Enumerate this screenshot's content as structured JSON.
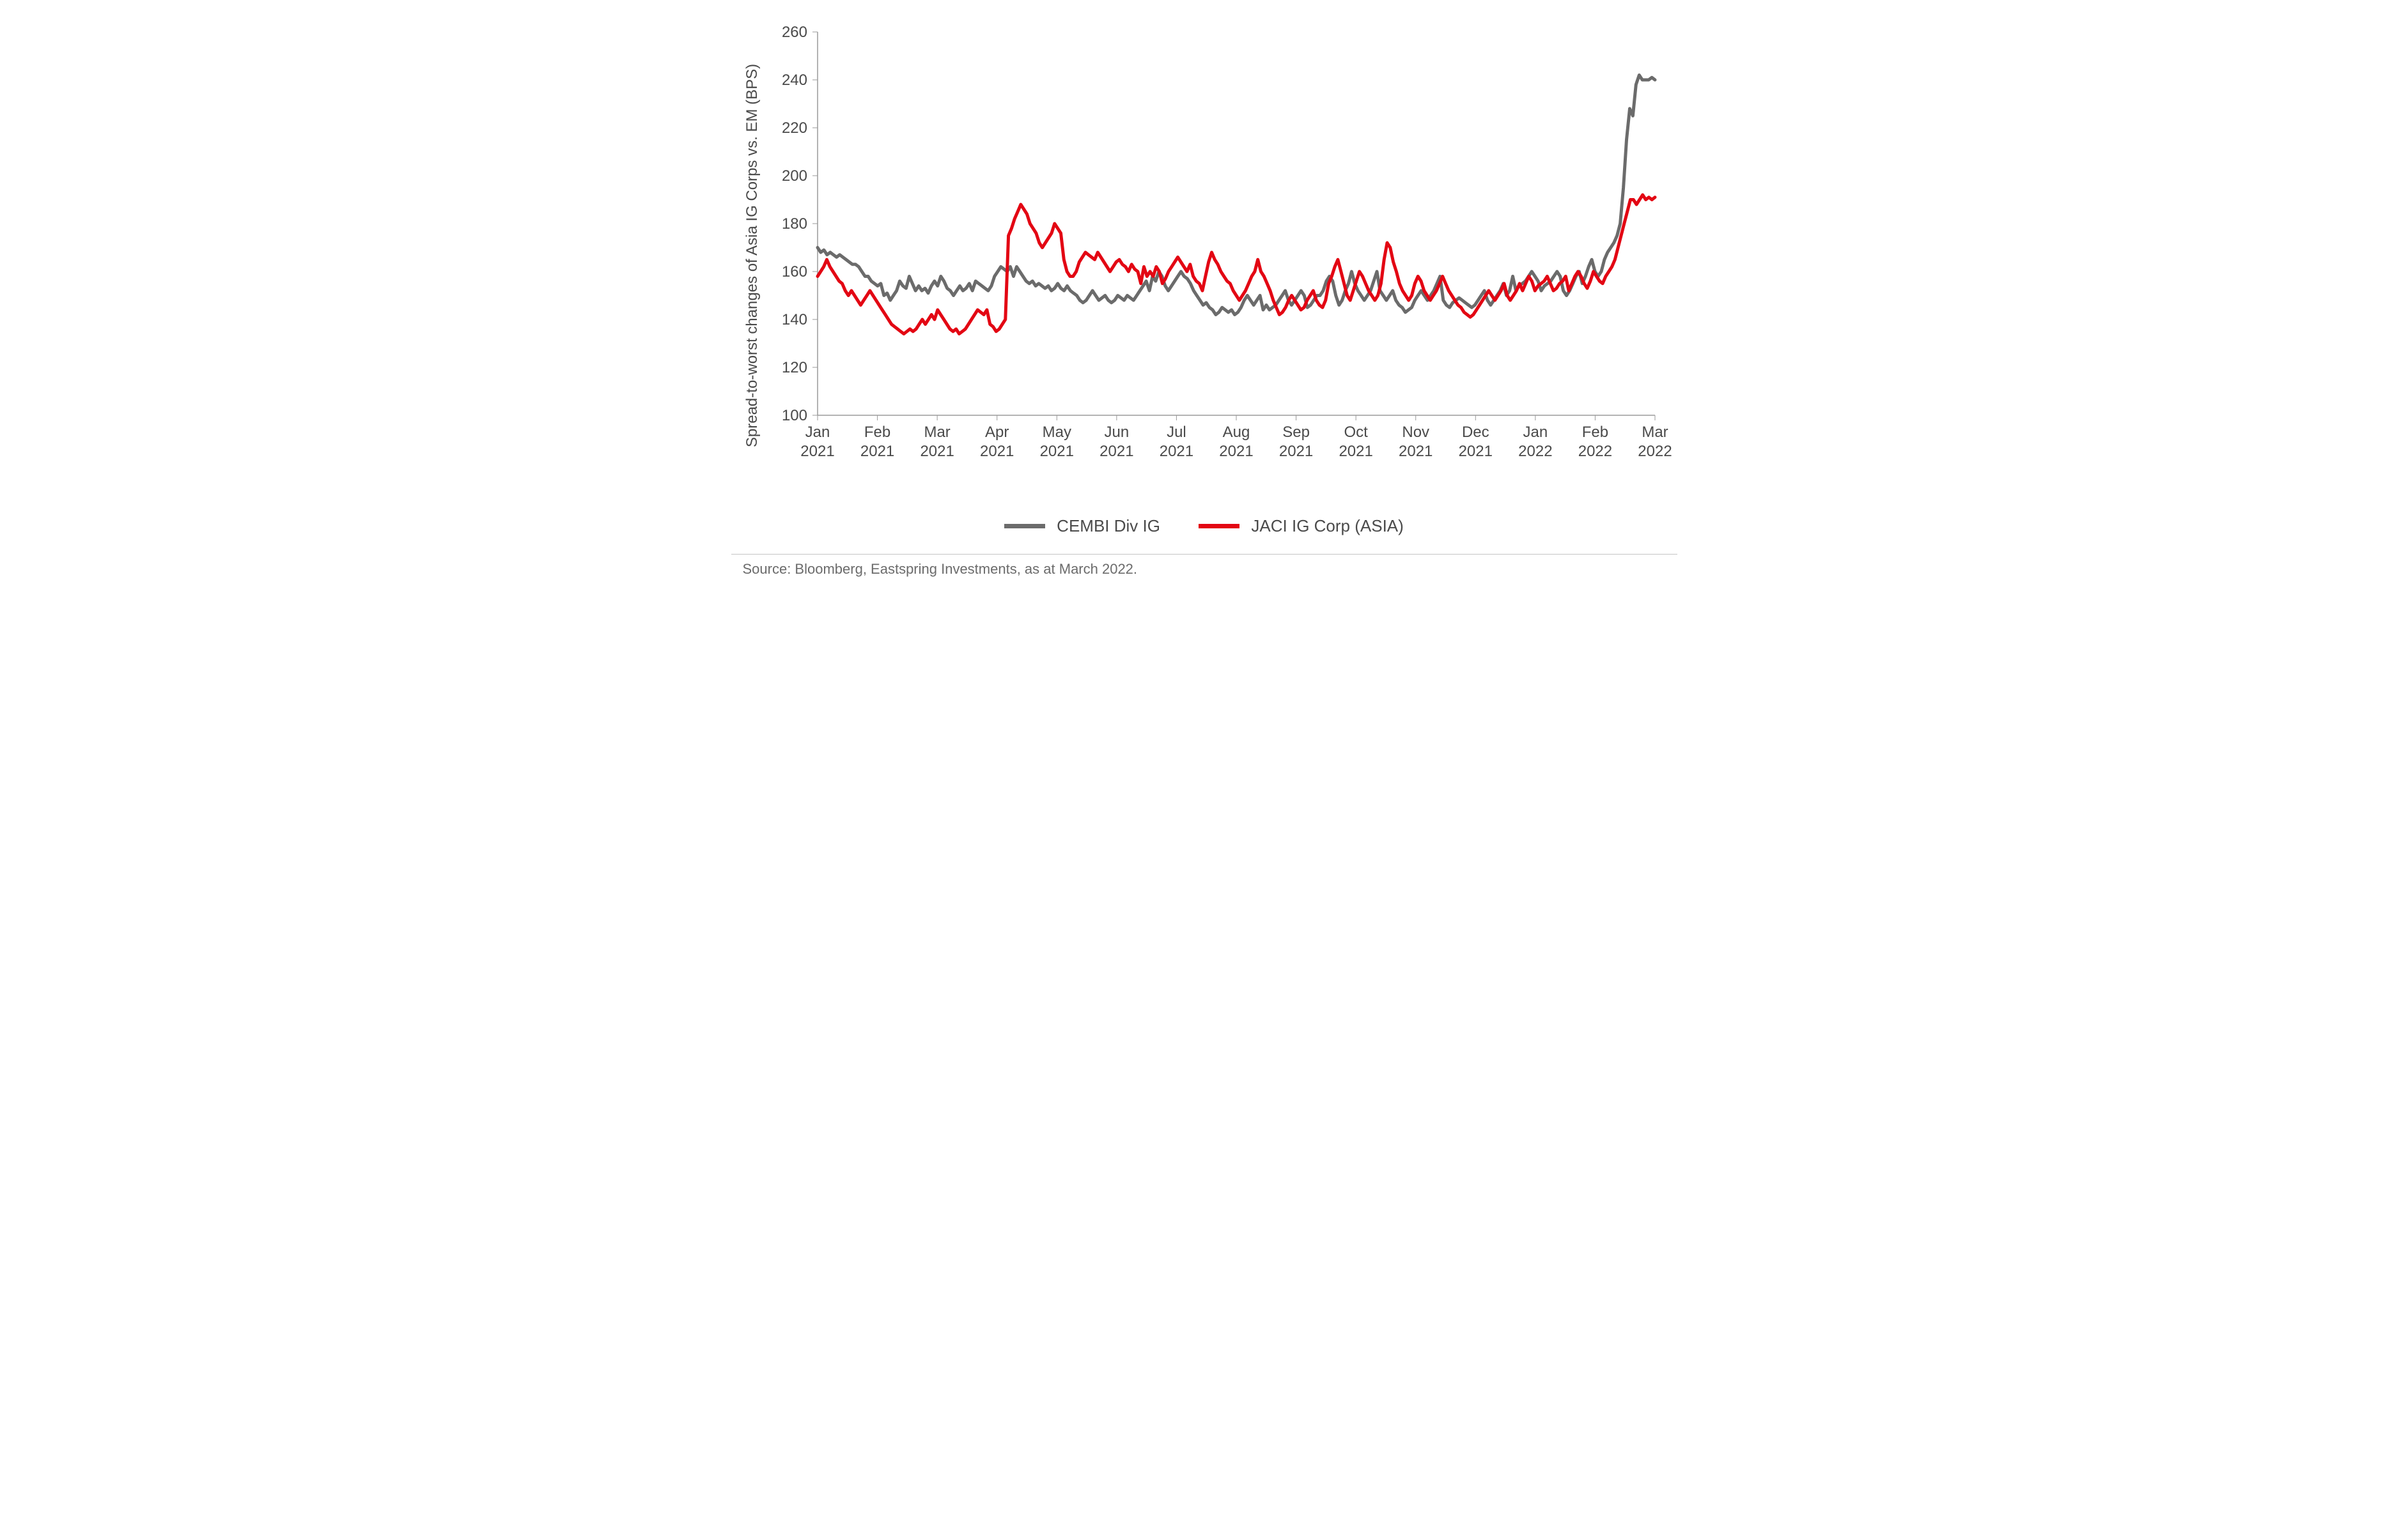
{
  "chart": {
    "type": "line",
    "background_color": "#ffffff",
    "axis_color": "#9a9a9a",
    "tick_color": "#9a9a9a",
    "text_color": "#4a4a4a",
    "source_text_color": "#6b6b6b",
    "y_axis": {
      "label": "Spread-to-worst changes of Asia IG Corps vs. EM (BPS)",
      "min": 100,
      "max": 260,
      "step": 20,
      "ticks": [
        100,
        120,
        140,
        160,
        180,
        200,
        220,
        240,
        260
      ],
      "label_fontsize": 24,
      "tick_fontsize": 24
    },
    "x_axis": {
      "labels": [
        [
          "Jan",
          "2021"
        ],
        [
          "Feb",
          "2021"
        ],
        [
          "Mar",
          "2021"
        ],
        [
          "Apr",
          "2021"
        ],
        [
          "May",
          "2021"
        ],
        [
          "Jun",
          "2021"
        ],
        [
          "Jul",
          "2021"
        ],
        [
          "Aug",
          "2021"
        ],
        [
          "Sep",
          "2021"
        ],
        [
          "Oct",
          "2021"
        ],
        [
          "Nov",
          "2021"
        ],
        [
          "Dec",
          "2021"
        ],
        [
          "Jan",
          "2022"
        ],
        [
          "Feb",
          "2022"
        ],
        [
          "Mar",
          "2022"
        ]
      ],
      "tick_fontsize": 24
    },
    "line_width": 5,
    "series": [
      {
        "name": "CEMBI Div IG",
        "color": "#6b6b6b",
        "values": [
          170,
          168,
          169,
          167,
          168,
          167,
          166,
          167,
          166,
          165,
          164,
          163,
          163,
          162,
          160,
          158,
          158,
          156,
          155,
          154,
          155,
          150,
          151,
          148,
          150,
          152,
          156,
          154,
          153,
          158,
          155,
          152,
          154,
          152,
          153,
          151,
          154,
          156,
          154,
          158,
          156,
          153,
          152,
          150,
          152,
          154,
          152,
          153,
          155,
          152,
          156,
          155,
          154,
          153,
          152,
          154,
          158,
          160,
          162,
          161,
          160,
          162,
          158,
          162,
          160,
          158,
          156,
          155,
          156,
          154,
          155,
          154,
          153,
          154,
          152,
          153,
          155,
          153,
          152,
          154,
          152,
          151,
          150,
          148,
          147,
          148,
          150,
          152,
          150,
          148,
          149,
          150,
          148,
          147,
          148,
          150,
          149,
          148,
          150,
          149,
          148,
          150,
          152,
          154,
          156,
          152,
          158,
          156,
          160,
          158,
          154,
          152,
          154,
          156,
          158,
          160,
          158,
          157,
          155,
          152,
          150,
          148,
          146,
          147,
          145,
          144,
          142,
          143,
          145,
          144,
          143,
          144,
          142,
          143,
          145,
          148,
          150,
          148,
          146,
          148,
          150,
          144,
          146,
          144,
          145,
          146,
          148,
          150,
          152,
          148,
          146,
          148,
          150,
          152,
          150,
          145,
          146,
          148,
          150,
          150,
          152,
          156,
          158,
          156,
          150,
          146,
          148,
          152,
          155,
          160,
          155,
          152,
          150,
          148,
          150,
          152,
          156,
          160,
          152,
          150,
          148,
          150,
          152,
          148,
          146,
          145,
          143,
          144,
          145,
          148,
          150,
          152,
          150,
          148,
          150,
          152,
          155,
          158,
          148,
          146,
          145,
          147,
          148,
          149,
          148,
          147,
          146,
          145,
          146,
          148,
          150,
          152,
          148,
          146,
          148,
          150,
          152,
          155,
          150,
          152,
          158,
          152,
          154,
          155,
          156,
          158,
          160,
          158,
          156,
          152,
          154,
          155,
          156,
          158,
          160,
          158,
          152,
          150,
          152,
          155,
          158,
          160,
          155,
          158,
          162,
          165,
          160,
          158,
          160,
          165,
          168,
          170,
          172,
          175,
          180,
          195,
          215,
          228,
          225,
          238,
          242,
          240,
          240,
          240,
          241,
          240
        ]
      },
      {
        "name": "JACI IG Corp (ASIA)",
        "color": "#e30613",
        "values": [
          158,
          160,
          162,
          165,
          162,
          160,
          158,
          156,
          155,
          152,
          150,
          152,
          150,
          148,
          146,
          148,
          150,
          152,
          150,
          148,
          146,
          144,
          142,
          140,
          138,
          137,
          136,
          135,
          134,
          135,
          136,
          135,
          136,
          138,
          140,
          138,
          140,
          142,
          140,
          144,
          142,
          140,
          138,
          136,
          135,
          136,
          134,
          135,
          136,
          138,
          140,
          142,
          144,
          143,
          142,
          144,
          138,
          137,
          135,
          136,
          138,
          140,
          175,
          178,
          182,
          185,
          188,
          186,
          184,
          180,
          178,
          176,
          172,
          170,
          172,
          174,
          176,
          180,
          178,
          176,
          165,
          160,
          158,
          158,
          160,
          164,
          166,
          168,
          167,
          166,
          165,
          168,
          166,
          164,
          162,
          160,
          162,
          164,
          165,
          163,
          162,
          160,
          163,
          161,
          160,
          155,
          162,
          158,
          160,
          158,
          162,
          160,
          155,
          157,
          160,
          162,
          164,
          166,
          164,
          162,
          160,
          163,
          158,
          156,
          155,
          152,
          158,
          164,
          168,
          165,
          163,
          160,
          158,
          156,
          155,
          152,
          150,
          148,
          150,
          152,
          155,
          158,
          160,
          165,
          160,
          158,
          155,
          152,
          148,
          145,
          142,
          143,
          145,
          148,
          150,
          148,
          146,
          144,
          145,
          148,
          150,
          152,
          148,
          146,
          145,
          148,
          155,
          158,
          162,
          165,
          160,
          155,
          150,
          148,
          152,
          156,
          160,
          158,
          155,
          152,
          150,
          148,
          150,
          155,
          165,
          172,
          170,
          164,
          160,
          155,
          152,
          150,
          148,
          150,
          155,
          158,
          156,
          152,
          150,
          148,
          150,
          152,
          155,
          158,
          155,
          152,
          150,
          148,
          146,
          145,
          143,
          142,
          141,
          142,
          144,
          146,
          148,
          150,
          152,
          150,
          148,
          150,
          152,
          155,
          150,
          148,
          150,
          152,
          155,
          152,
          155,
          158,
          156,
          152,
          154,
          155,
          156,
          158,
          155,
          152,
          153,
          155,
          156,
          158,
          152,
          155,
          158,
          160,
          158,
          155,
          153,
          156,
          160,
          158,
          156,
          155,
          158,
          160,
          162,
          165,
          170,
          175,
          180,
          185,
          190,
          190,
          188,
          190,
          192,
          190,
          191,
          190,
          191
        ]
      }
    ],
    "legend": {
      "items": [
        {
          "label": "CEMBI Div IG",
          "color": "#6b6b6b"
        },
        {
          "label": "JACI IG Corp (ASIA)",
          "color": "#e30613"
        }
      ],
      "fontsize": 26
    }
  },
  "source": "Source: Bloomberg, Eastspring Investments, as at March 2022."
}
